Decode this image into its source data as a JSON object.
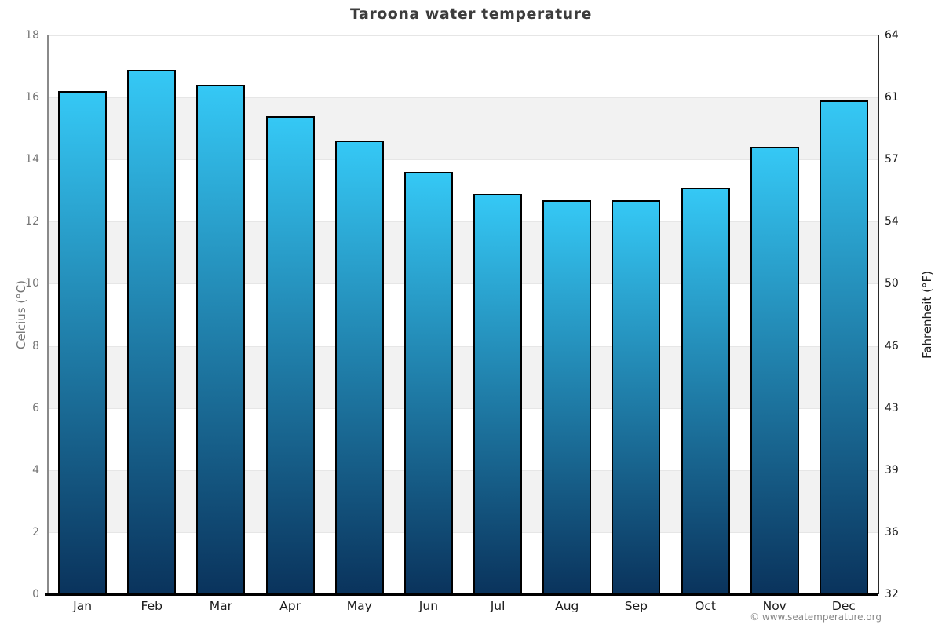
{
  "title": "Taroona water temperature",
  "footer": "© www.seatemperature.org",
  "axes": {
    "left_title": "Celcius (°C)",
    "right_title": "Fahrenheit (°F)"
  },
  "chart_data": {
    "type": "bar",
    "title": "Taroona water temperature",
    "categories": [
      "Jan",
      "Feb",
      "Mar",
      "Apr",
      "May",
      "Jun",
      "Jul",
      "Aug",
      "Sep",
      "Oct",
      "Nov",
      "Dec"
    ],
    "values": [
      16.2,
      16.9,
      16.4,
      15.4,
      14.6,
      13.6,
      12.9,
      12.7,
      12.7,
      13.1,
      14.4,
      15.9
    ],
    "value_unit": "°C",
    "xlabel": "",
    "ylabel_left": "Celcius (°C)",
    "ylabel_right": "Fahrenheit (°F)",
    "ylim": [
      0,
      18
    ],
    "y_left_ticks": [
      18,
      16,
      14,
      12,
      10,
      8,
      6,
      4,
      2,
      0
    ],
    "y_right_ticks": [
      64,
      61,
      57,
      54,
      50,
      46,
      43,
      39,
      36,
      32
    ],
    "grid": "alternating horizontal bands every 2°C, gray on 16-14, 12-10, 8-6, 4-2",
    "legend": "none",
    "colors": {
      "bar_gradient_top": "#35c8f5",
      "bar_gradient_bottom": "#0a335c",
      "bar_border": "#000000",
      "band_gray": "#f2f2f2",
      "band_white": "#ffffff",
      "title_color": "#3d3d3d",
      "left_tick_color": "#757575",
      "right_tick_color": "#1a1a1a",
      "left_axis_line": "#8a8a8a",
      "right_axis_line": "#2a2a2a",
      "bottom_axis_line": "#000000",
      "footer_color": "#888888"
    }
  }
}
